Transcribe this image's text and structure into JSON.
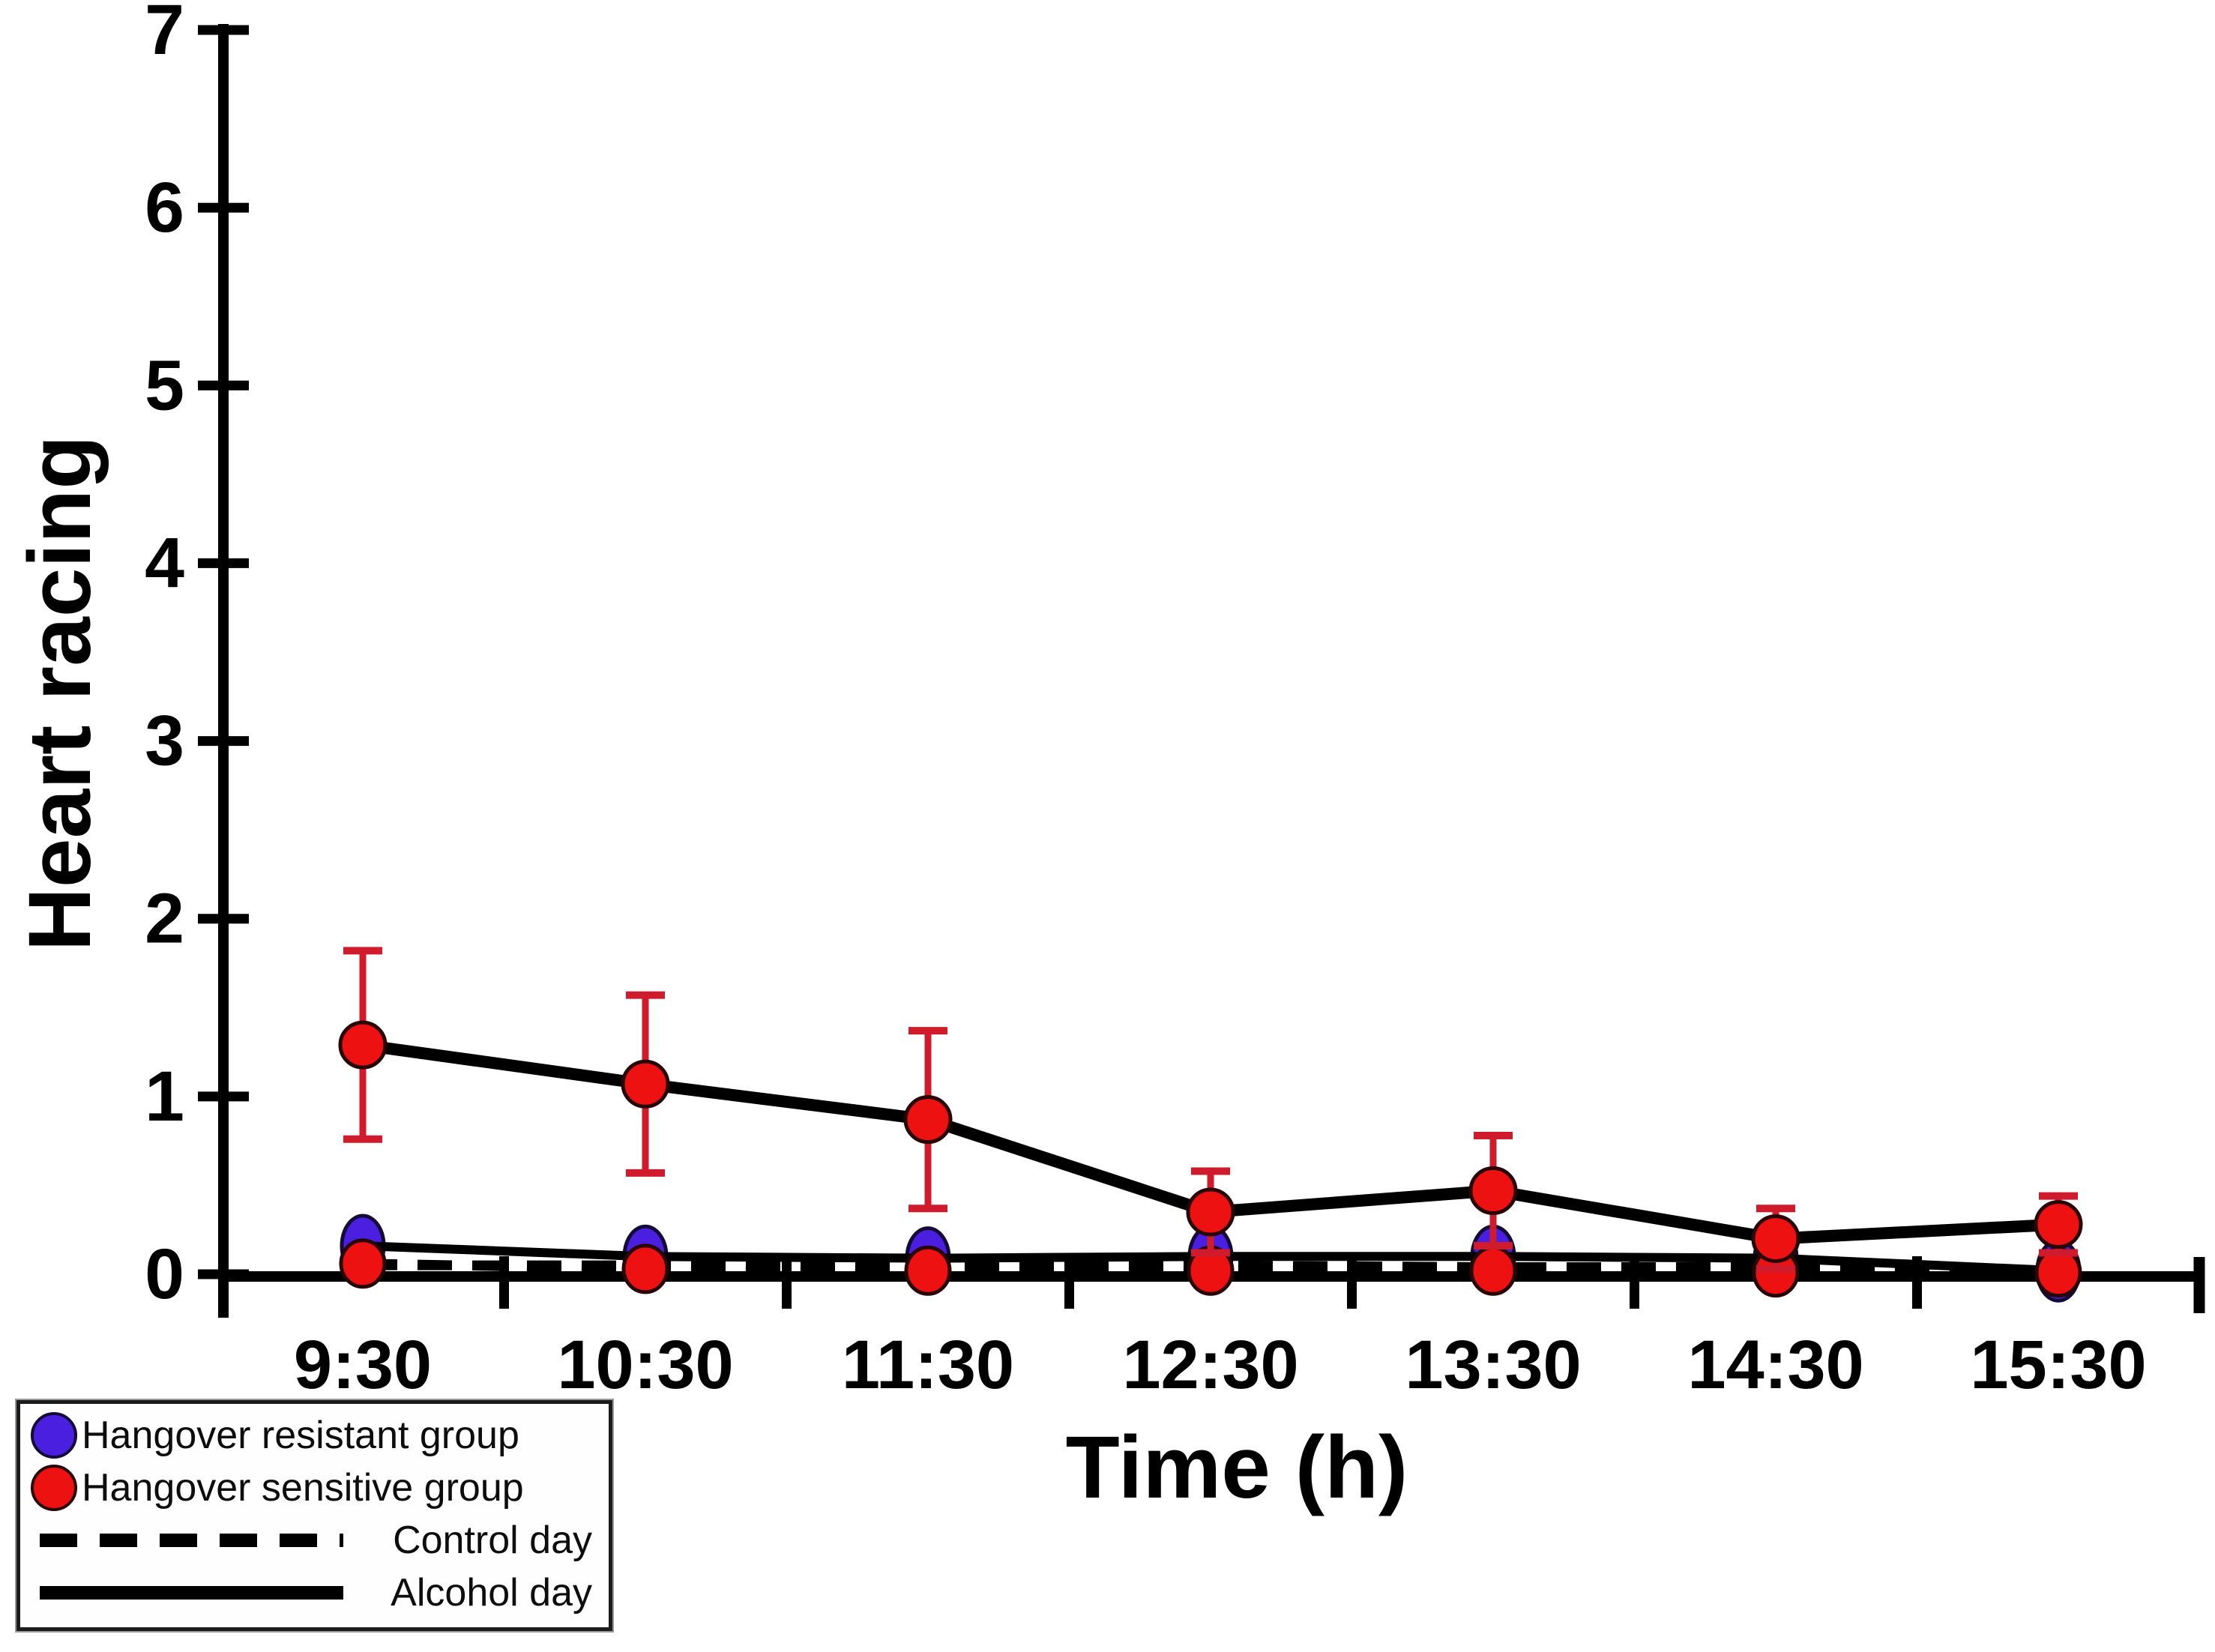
{
  "chart_data": {
    "type": "line",
    "title": "",
    "xlabel": "Time (h)",
    "ylabel": "Heart racing",
    "categories": [
      "9:30",
      "10:30",
      "11:30",
      "12:30",
      "13:30",
      "14:30",
      "15:30"
    ],
    "ylim": [
      0,
      7
    ],
    "yticks": [
      0,
      1,
      2,
      3,
      4,
      5,
      6,
      7
    ],
    "grid": false,
    "series": [
      {
        "name": "Hangover sensitive group - Alcohol day",
        "group": "sensitive",
        "day": "alcohol",
        "color": "#ee1111",
        "line": "solid",
        "marker": "circle",
        "values": [
          1.29,
          1.07,
          0.87,
          0.35,
          0.47,
          0.2,
          0.28
        ],
        "error": [
          0.53,
          0.5,
          0.5,
          0.23,
          0.31,
          0.17,
          0.16
        ]
      },
      {
        "name": "Hangover resistant group - Alcohol day",
        "group": "resistant",
        "day": "alcohol",
        "color": "#4b1fe0",
        "line": "solid",
        "marker": "circle",
        "values": [
          0.16,
          0.1,
          0.09,
          0.1,
          0.1,
          0.09,
          0.02
        ]
      },
      {
        "name": "Hangover sensitive group - Control day",
        "group": "sensitive",
        "day": "control",
        "color": "#ee1111",
        "line": "dashed",
        "marker": "circle",
        "values": [
          0.06,
          0.03,
          0.02,
          0.02,
          0.02,
          0.01,
          0.01
        ]
      },
      {
        "name": "Hangover resistant group - Control day",
        "group": "resistant",
        "day": "control",
        "color": "#4b1fe0",
        "line": "dashed",
        "marker": "circle",
        "values": [
          0.05,
          0.05,
          0.04,
          0.05,
          0.04,
          0.04,
          0.02
        ]
      }
    ],
    "legend": {
      "position": "bottom-left",
      "entries": [
        {
          "marker": "circle",
          "color": "#4b1fe0",
          "label": "Hangover resistant group"
        },
        {
          "marker": "circle",
          "color": "#ee1111",
          "label": "Hangover sensitive group"
        },
        {
          "marker": "dashed-line",
          "color": "#000000",
          "label": "Control day"
        },
        {
          "marker": "solid-line",
          "color": "#000000",
          "label": "Alcohol day"
        }
      ]
    },
    "colors": {
      "axis": "#000000",
      "error_bar": "#cf1b2b",
      "sensitive": "#ee1111",
      "resistant": "#4b1fe0"
    }
  }
}
